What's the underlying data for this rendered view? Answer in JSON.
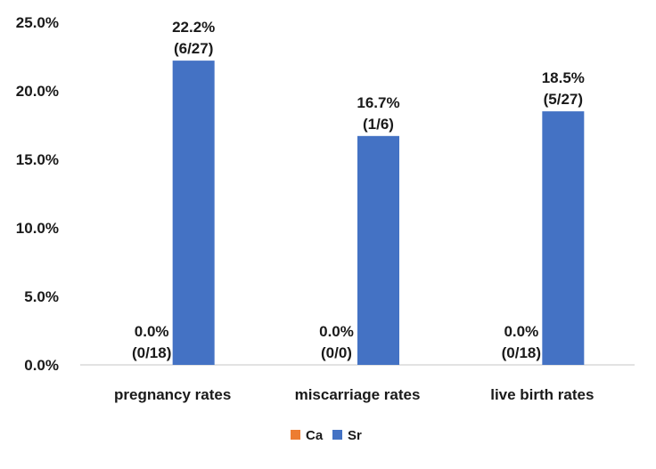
{
  "chart_data": {
    "type": "bar",
    "categories": [
      "pregnancy rates",
      "miscarriage rates",
      "live birth rates"
    ],
    "series": [
      {
        "name": "Ca",
        "color": "#ED7D31",
        "values": [
          0.0,
          0.0,
          0.0
        ],
        "labels": [
          [
            "0.0%",
            "(0/18)"
          ],
          [
            "0.0%",
            "(0/0)"
          ],
          [
            "0.0%",
            "(0/18)"
          ]
        ]
      },
      {
        "name": "Sr",
        "color": "#4472C4",
        "values": [
          22.2,
          16.7,
          18.5
        ],
        "labels": [
          [
            "22.2%",
            "(6/27)"
          ],
          [
            "16.7%",
            "(1/6)"
          ],
          [
            "18.5%",
            "(5/27)"
          ]
        ]
      }
    ],
    "y_ticks": [
      "0.0%",
      "5.0%",
      "10.0%",
      "15.0%",
      "20.0%",
      "25.0%"
    ],
    "ylim": [
      0,
      25
    ],
    "y_unit": "percent",
    "title": "",
    "xlabel": "",
    "ylabel": "",
    "grid": false,
    "legend_position": "bottom"
  }
}
